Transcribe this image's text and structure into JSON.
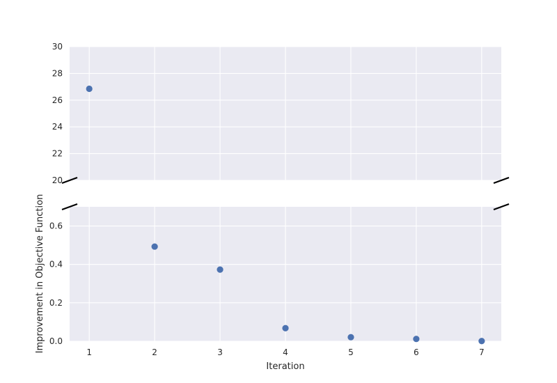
{
  "chart_data": {
    "type": "scatter",
    "broken_y_axis": true,
    "title": "",
    "xlabel": "Iteration",
    "ylabel": "Improvement in Objective Function",
    "x": [
      1,
      2,
      3,
      4,
      5,
      6,
      7
    ],
    "y": [
      26.85,
      0.493,
      0.373,
      0.068,
      0.021,
      0.012,
      0.001
    ],
    "xlim": [
      0.7,
      7.3
    ],
    "x_ticks": [
      "1",
      "2",
      "3",
      "4",
      "5",
      "6",
      "7"
    ],
    "upper_ylim": [
      20,
      30
    ],
    "upper_y_ticks": [
      "20",
      "22",
      "24",
      "26",
      "28",
      "30"
    ],
    "lower_ylim": [
      0,
      0.7
    ],
    "lower_y_ticks": [
      "0.0",
      "0.2",
      "0.4",
      "0.6"
    ],
    "grid": true,
    "background_color": "#EAEAF2",
    "grid_color": "#FFFFFF",
    "marker_color": "#4C72B0"
  }
}
